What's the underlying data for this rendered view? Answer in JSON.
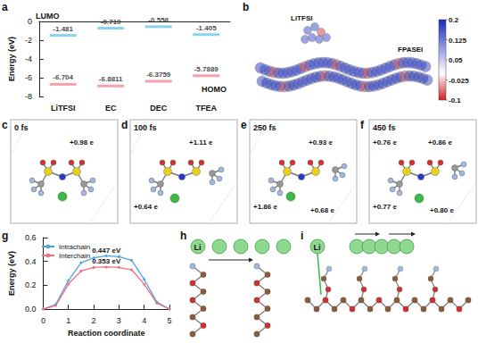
{
  "chart_data": [
    {
      "panel": "a",
      "type": "scatter",
      "marker": "line",
      "y_label": "Energy (eV)",
      "categories": [
        "LiTFSI",
        "EC",
        "DEC",
        "TFEA"
      ],
      "series": [
        {
          "name": "LUMO",
          "color": "#6ec6f0",
          "values": [
            -1.481,
            -0.719,
            -0.558,
            -1.405
          ]
        },
        {
          "name": "HOMO",
          "color": "#f2899a",
          "values": [
            -6.704,
            -6.8811,
            -6.3759,
            -5.7889
          ]
        }
      ],
      "ylim": [
        -8,
        0
      ],
      "yticks": [
        -8,
        -6,
        -4,
        -2,
        0
      ],
      "grid": false,
      "data_labels": true
    },
    {
      "panel": "g",
      "type": "line",
      "marker": "circle",
      "x_label": "Reaction coordinate",
      "y_label": "Energy (eV)",
      "x": [
        0,
        0.5,
        1,
        1.5,
        2,
        2.5,
        3,
        3.5,
        4,
        4.5,
        5
      ],
      "series": [
        {
          "name": "Intrachain",
          "color": "#4fa3e0",
          "values": [
            0,
            0.04,
            0.24,
            0.39,
            0.43,
            0.447,
            0.44,
            0.41,
            0.25,
            0.06,
            0
          ]
        },
        {
          "name": "Interchain",
          "color": "#f07080",
          "values": [
            0,
            0.03,
            0.21,
            0.32,
            0.35,
            0.353,
            0.35,
            0.33,
            0.21,
            0.05,
            0
          ]
        }
      ],
      "xlim": [
        0,
        5
      ],
      "xticks": [
        0,
        1,
        2,
        3,
        4,
        5
      ],
      "ylim": [
        0,
        0.6
      ],
      "yticks": [
        {
          "value": 0,
          "label": "0.0"
        },
        0.2,
        0.4,
        0.6
      ],
      "grid": false,
      "legend": "top-left",
      "annotations": [
        {
          "text": "0.447 eV",
          "series": "Intrachain",
          "x": 2.5,
          "y": 0.447
        },
        {
          "text": "0.353 eV",
          "series": "Interchain",
          "x": 2.5,
          "y": 0.353
        }
      ]
    }
  ],
  "panel_b": {
    "label": "b",
    "texts": [
      "LiTFSI",
      "FPASEI"
    ],
    "colorbar": {
      "range": [
        -0.1,
        0.2
      ],
      "ticks": [
        0.2,
        0.125,
        0.05,
        -0.025,
        -0.1
      ]
    }
  },
  "snapshots": [
    {
      "label": "c",
      "time": "0 fs",
      "charges": [
        "+0.98 e"
      ]
    },
    {
      "label": "d",
      "time": "100 fs",
      "charges": [
        "+1.11 e",
        "+0.64 e"
      ]
    },
    {
      "label": "e",
      "time": "250 fs",
      "charges": [
        "+0.93 e",
        "+1.86 e",
        "+0.68 e"
      ]
    },
    {
      "label": "f",
      "time": "450 fs",
      "charges": [
        "+0.86 e",
        "+0.77 e",
        "+0.80 e",
        "+0.76 e"
      ]
    }
  ],
  "panel_h": {
    "label": "h",
    "ion": "Li"
  },
  "panel_i": {
    "label": "i",
    "ion": "Li"
  }
}
